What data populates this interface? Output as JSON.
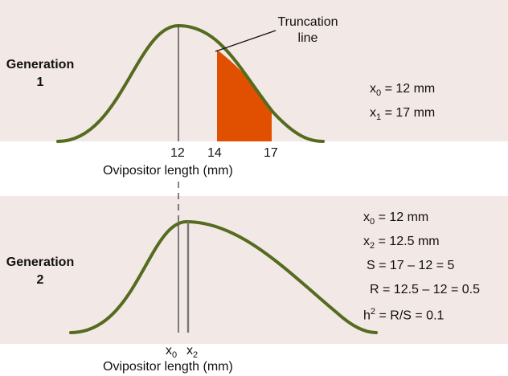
{
  "generation1": {
    "label_line1": "Generation",
    "label_line2": "1",
    "equations": [
      {
        "base": "x",
        "sub": "0",
        "rest": " = 12 mm"
      },
      {
        "base": "x",
        "sub": "1",
        "rest": " = 17 mm"
      }
    ],
    "ticks": [
      "12",
      "14",
      "17"
    ],
    "axis_label": "Ovipositor length (mm)",
    "truncation_label_line1": "Truncation",
    "truncation_label_line2": "line",
    "mean": 12,
    "truncation_point": 14,
    "selected_mean": 17
  },
  "generation2": {
    "label_line1": "Generation",
    "label_line2": "2",
    "equations": [
      {
        "base": "x",
        "sub": "0",
        "rest": " = 12 mm"
      },
      {
        "base": "x",
        "sub": "2",
        "rest": " = 12.5 mm"
      },
      {
        "text": "S = 17 – 12 = 5"
      },
      {
        "text": "R = 12.5 – 12 = 0.5"
      },
      {
        "base": "h",
        "sup": "2",
        "rest": " = R/S = 0.1"
      }
    ],
    "tick_x0": {
      "base": "x",
      "sub": "0"
    },
    "tick_x2": {
      "base": "x",
      "sub": "2"
    },
    "axis_label": "Ovipositor length (mm)",
    "mean": 12,
    "offspring_mean": 12.5
  },
  "colors": {
    "panel_bg": "#f2e8e6",
    "curve": "#556b1f",
    "selected_fill": "#e05000",
    "line": "#333333"
  }
}
